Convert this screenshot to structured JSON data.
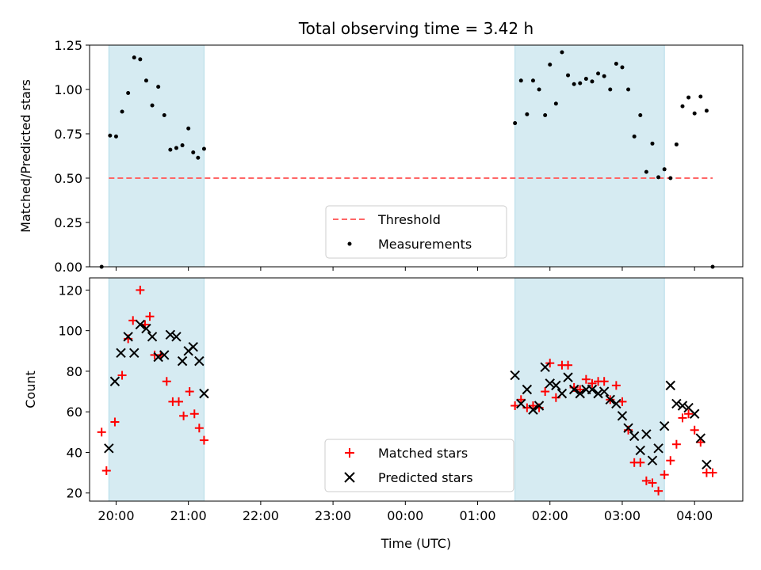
{
  "chart_data": [
    {
      "type": "scatter",
      "title": "Total observing time = 3.42 h",
      "ylabel": "Matched/Predicted stars",
      "xlabel": "",
      "xlim": [
        "19:38",
        "04:40"
      ],
      "ylim": [
        0,
        1.25
      ],
      "yticks": [
        0.0,
        0.25,
        0.5,
        0.75,
        1.0,
        1.25
      ],
      "ytick_labels": [
        "0.00",
        "0.25",
        "0.50",
        "0.75",
        "1.00",
        "1.25"
      ],
      "shaded_intervals": [
        [
          "19:54",
          "21:13"
        ],
        [
          "01:31",
          "03:35"
        ]
      ],
      "shade_color": "#add8e6",
      "threshold": {
        "name": "Threshold",
        "y": 0.5,
        "x_from": "19:54",
        "x_to": "04:15",
        "color": "#ff6666"
      },
      "series": [
        {
          "name": "Measurements",
          "color": "#000000",
          "points": [
            [
              "19:48",
              0.0
            ],
            [
              "19:55",
              0.74
            ],
            [
              "20:00",
              0.735
            ],
            [
              "20:05",
              0.875
            ],
            [
              "20:10",
              0.98
            ],
            [
              "20:15",
              1.18
            ],
            [
              "20:20",
              1.17
            ],
            [
              "20:25",
              1.05
            ],
            [
              "20:30",
              0.91
            ],
            [
              "20:35",
              1.015
            ],
            [
              "20:40",
              0.855
            ],
            [
              "20:45",
              0.66
            ],
            [
              "20:50",
              0.67
            ],
            [
              "20:55",
              0.685
            ],
            [
              "21:00",
              0.78
            ],
            [
              "21:04",
              0.645
            ],
            [
              "21:08",
              0.615
            ],
            [
              "21:13",
              0.665
            ],
            [
              "01:31",
              0.81
            ],
            [
              "01:36",
              1.05
            ],
            [
              "01:41",
              0.86
            ],
            [
              "01:46",
              1.05
            ],
            [
              "01:51",
              1.0
            ],
            [
              "01:56",
              0.855
            ],
            [
              "02:00",
              1.14
            ],
            [
              "02:05",
              0.92
            ],
            [
              "02:10",
              1.21
            ],
            [
              "02:15",
              1.08
            ],
            [
              "02:20",
              1.03
            ],
            [
              "02:25",
              1.035
            ],
            [
              "02:30",
              1.06
            ],
            [
              "02:35",
              1.045
            ],
            [
              "02:40",
              1.09
            ],
            [
              "02:45",
              1.075
            ],
            [
              "02:50",
              1.0
            ],
            [
              "02:55",
              1.145
            ],
            [
              "03:00",
              1.125
            ],
            [
              "03:05",
              1.0
            ],
            [
              "03:10",
              0.735
            ],
            [
              "03:15",
              0.855
            ],
            [
              "03:20",
              0.535
            ],
            [
              "03:25",
              0.695
            ],
            [
              "03:30",
              0.505
            ],
            [
              "03:35",
              0.55
            ],
            [
              "03:40",
              0.5
            ],
            [
              "03:45",
              0.69
            ],
            [
              "03:50",
              0.905
            ],
            [
              "03:55",
              0.955
            ],
            [
              "04:00",
              0.865
            ],
            [
              "04:05",
              0.96
            ],
            [
              "04:10",
              0.88
            ],
            [
              "04:15",
              0.0
            ]
          ]
        }
      ],
      "legend": {
        "position": "lower-center",
        "entries": [
          "Threshold",
          "Measurements"
        ]
      }
    },
    {
      "type": "scatter",
      "xlabel": "Time (UTC)",
      "ylabel": "Count",
      "xlim": [
        "19:38",
        "04:40"
      ],
      "ylim": [
        16,
        126
      ],
      "yticks": [
        20,
        40,
        60,
        80,
        100,
        120
      ],
      "xticks": [
        "20:00",
        "21:00",
        "22:00",
        "23:00",
        "00:00",
        "01:00",
        "02:00",
        "03:00",
        "04:00"
      ],
      "shaded_intervals": [
        [
          "19:54",
          "21:13"
        ],
        [
          "01:31",
          "03:35"
        ]
      ],
      "shade_color": "#add8e6",
      "series": [
        {
          "name": "Matched stars",
          "marker": "+",
          "color": "#ff0000",
          "points": [
            [
              "19:48",
              50
            ],
            [
              "19:52",
              31
            ],
            [
              "19:59",
              55
            ],
            [
              "20:05",
              78
            ],
            [
              "20:10",
              96
            ],
            [
              "20:14",
              105
            ],
            [
              "20:20",
              120
            ],
            [
              "20:24",
              103
            ],
            [
              "20:28",
              107
            ],
            [
              "20:32",
              88
            ],
            [
              "20:37",
              88
            ],
            [
              "20:42",
              75
            ],
            [
              "20:47",
              65
            ],
            [
              "20:52",
              65
            ],
            [
              "20:56",
              58
            ],
            [
              "21:01",
              70
            ],
            [
              "21:05",
              59
            ],
            [
              "21:09",
              52
            ],
            [
              "21:13",
              46
            ],
            [
              "01:31",
              63
            ],
            [
              "01:36",
              66
            ],
            [
              "01:41",
              62
            ],
            [
              "01:46",
              63
            ],
            [
              "01:51",
              62
            ],
            [
              "01:56",
              70
            ],
            [
              "02:00",
              84
            ],
            [
              "02:05",
              67
            ],
            [
              "02:10",
              83
            ],
            [
              "02:15",
              83
            ],
            [
              "02:20",
              72
            ],
            [
              "02:25",
              71
            ],
            [
              "02:30",
              76
            ],
            [
              "02:35",
              74
            ],
            [
              "02:40",
              75
            ],
            [
              "02:45",
              75
            ],
            [
              "02:50",
              66
            ],
            [
              "02:55",
              73
            ],
            [
              "03:00",
              65
            ],
            [
              "03:05",
              51
            ],
            [
              "03:10",
              35
            ],
            [
              "03:15",
              35
            ],
            [
              "03:20",
              26
            ],
            [
              "03:25",
              25
            ],
            [
              "03:30",
              21
            ],
            [
              "03:35",
              29
            ],
            [
              "03:40",
              36
            ],
            [
              "03:45",
              44
            ],
            [
              "03:50",
              57
            ],
            [
              "03:55",
              59
            ],
            [
              "04:00",
              51
            ],
            [
              "04:05",
              45
            ],
            [
              "04:10",
              30
            ],
            [
              "04:15",
              30
            ]
          ]
        },
        {
          "name": "Predicted stars",
          "marker": "x",
          "color": "#000000",
          "points": [
            [
              "19:54",
              42
            ],
            [
              "19:59",
              75
            ],
            [
              "20:04",
              89
            ],
            [
              "20:10",
              97
            ],
            [
              "20:15",
              89
            ],
            [
              "20:20",
              103
            ],
            [
              "20:25",
              101
            ],
            [
              "20:30",
              97
            ],
            [
              "20:35",
              87
            ],
            [
              "20:40",
              88
            ],
            [
              "20:45",
              98
            ],
            [
              "20:50",
              97
            ],
            [
              "20:55",
              85
            ],
            [
              "21:00",
              90
            ],
            [
              "21:04",
              92
            ],
            [
              "21:09",
              85
            ],
            [
              "21:13",
              69
            ],
            [
              "01:31",
              78
            ],
            [
              "01:36",
              64
            ],
            [
              "01:41",
              71
            ],
            [
              "01:46",
              61
            ],
            [
              "01:51",
              63
            ],
            [
              "01:56",
              82
            ],
            [
              "02:00",
              74
            ],
            [
              "02:05",
              73
            ],
            [
              "02:10",
              69
            ],
            [
              "02:15",
              77
            ],
            [
              "02:20",
              71
            ],
            [
              "02:25",
              69
            ],
            [
              "02:30",
              71
            ],
            [
              "02:35",
              71
            ],
            [
              "02:40",
              69
            ],
            [
              "02:45",
              70
            ],
            [
              "02:50",
              66
            ],
            [
              "02:55",
              64
            ],
            [
              "03:00",
              58
            ],
            [
              "03:05",
              52
            ],
            [
              "03:10",
              48
            ],
            [
              "03:15",
              41
            ],
            [
              "03:20",
              49
            ],
            [
              "03:25",
              36
            ],
            [
              "03:30",
              42
            ],
            [
              "03:35",
              53
            ],
            [
              "03:40",
              73
            ],
            [
              "03:45",
              64
            ],
            [
              "03:50",
              63
            ],
            [
              "03:55",
              62
            ],
            [
              "04:00",
              59
            ],
            [
              "04:05",
              47
            ],
            [
              "04:10",
              34
            ]
          ]
        }
      ],
      "legend": {
        "position": "lower-center",
        "entries": [
          "Matched stars",
          "Predicted stars"
        ]
      }
    }
  ]
}
